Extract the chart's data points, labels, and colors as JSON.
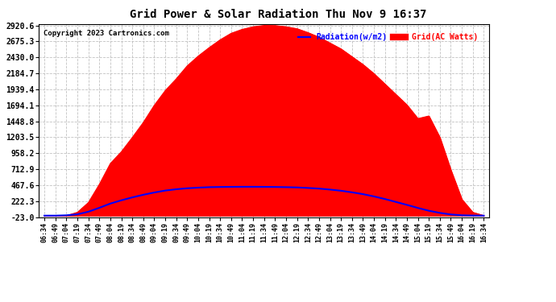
{
  "title": "Grid Power & Solar Radiation Thu Nov 9 16:37",
  "copyright": "Copyright 2023 Cartronics.com",
  "legend_radiation": "Radiation(w/m2)",
  "legend_grid": "Grid(AC Watts)",
  "yticks": [
    2920.6,
    2675.3,
    2430.0,
    2184.7,
    1939.4,
    1694.1,
    1448.8,
    1203.5,
    958.2,
    712.9,
    467.6,
    222.3,
    -23.0
  ],
  "ymin": -23.0,
  "ymax": 2920.6,
  "background_color": "#ffffff",
  "plot_bg_color": "#ffffff",
  "grid_color": "#aaaaaa",
  "fill_color": "#ff0000",
  "radiation_color": "#0000ff",
  "title_color": "#000000",
  "copyright_color": "#000000",
  "xtick_labels": [
    "06:34",
    "06:49",
    "07:04",
    "07:19",
    "07:34",
    "07:49",
    "08:04",
    "08:19",
    "08:34",
    "08:49",
    "09:04",
    "09:19",
    "09:34",
    "09:49",
    "10:04",
    "10:19",
    "10:34",
    "10:49",
    "11:04",
    "11:19",
    "11:34",
    "11:49",
    "12:04",
    "12:19",
    "12:34",
    "12:49",
    "13:04",
    "13:19",
    "13:34",
    "13:49",
    "14:04",
    "14:19",
    "14:34",
    "14:49",
    "15:04",
    "15:19",
    "15:34",
    "15:49",
    "16:04",
    "16:19",
    "16:34"
  ],
  "grid_power": [
    0,
    0,
    0,
    50,
    200,
    480,
    800,
    980,
    1200,
    1430,
    1694,
    1920,
    2100,
    2300,
    2450,
    2580,
    2700,
    2800,
    2860,
    2900,
    2920,
    2918,
    2900,
    2870,
    2810,
    2740,
    2650,
    2560,
    2440,
    2320,
    2180,
    2020,
    1860,
    1700,
    1490,
    1530,
    1200,
    700,
    250,
    50,
    0
  ],
  "radiation": [
    0,
    0,
    5,
    20,
    60,
    120,
    185,
    235,
    280,
    320,
    355,
    385,
    405,
    420,
    430,
    437,
    440,
    442,
    443,
    443,
    442,
    440,
    437,
    433,
    425,
    415,
    400,
    382,
    358,
    330,
    295,
    255,
    210,
    165,
    118,
    75,
    42,
    18,
    5,
    1,
    0
  ]
}
